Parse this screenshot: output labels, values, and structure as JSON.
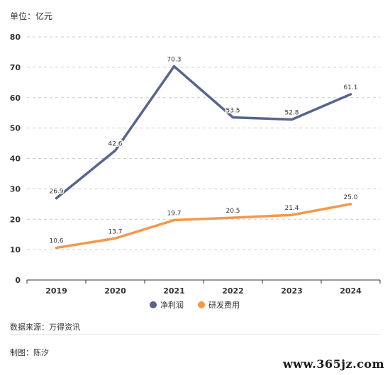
{
  "unit_label": "单位：亿元",
  "source_label": "数据来源：万得资讯",
  "author_label": "制图：陈汐",
  "watermark": "www.365jz.com",
  "colors": {
    "net_profit": "#56658f",
    "rd_cost": "#f5974a",
    "grid": "#cccccc",
    "axis": "#333333"
  },
  "chart_data": {
    "type": "line",
    "categories": [
      "2019",
      "2020",
      "2021",
      "2022",
      "2023",
      "2024"
    ],
    "ylim": [
      0,
      80
    ],
    "yticks": [
      0,
      10,
      20,
      30,
      40,
      50,
      60,
      70,
      80
    ],
    "grid": "horizontal dashed",
    "legend_position": "bottom-center",
    "series": [
      {
        "name": "净利润",
        "values": [
          26.9,
          42.6,
          70.3,
          53.5,
          52.8,
          61.1
        ],
        "labels": [
          "26.9",
          "42.6",
          "70.3",
          "53.5",
          "52.8",
          "61.1"
        ]
      },
      {
        "name": "研发费用",
        "values": [
          10.6,
          13.7,
          19.7,
          20.5,
          21.4,
          25.0
        ],
        "labels": [
          "10.6",
          "13.7",
          "19.7",
          "20.5",
          "21.4",
          "25.0"
        ]
      }
    ]
  }
}
